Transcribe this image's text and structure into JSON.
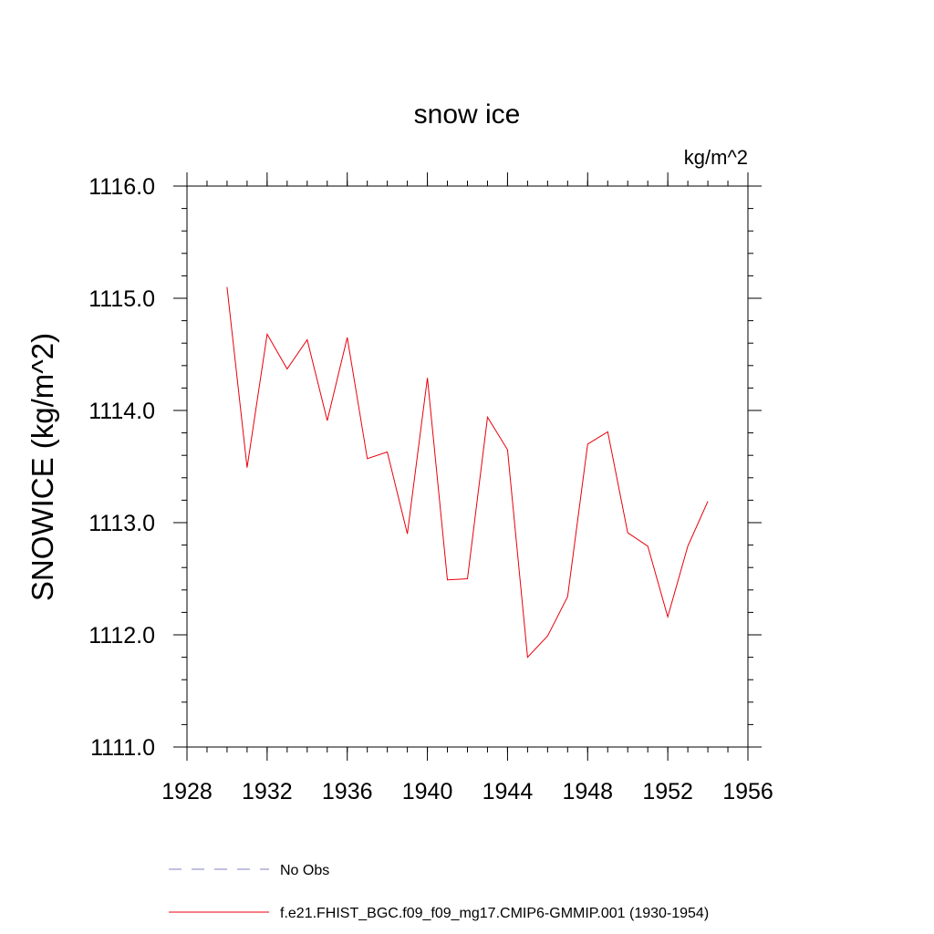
{
  "chart_data": {
    "type": "line",
    "title": "snow ice",
    "units_label": "kg/m^2",
    "ylabel": "SNOWICE  (kg/m^2)",
    "xlabel": "",
    "xlim": [
      1928,
      1956
    ],
    "ylim": [
      1111.0,
      1116.0
    ],
    "x_ticks": [
      1928,
      1932,
      1936,
      1940,
      1944,
      1948,
      1952,
      1956
    ],
    "x_tick_labels": [
      "1928",
      "1932",
      "1936",
      "1940",
      "1944",
      "1948",
      "1952",
      "1956"
    ],
    "y_ticks": [
      1111.0,
      1112.0,
      1113.0,
      1114.0,
      1115.0,
      1116.0
    ],
    "y_tick_labels": [
      "1111.0",
      "1112.0",
      "1113.0",
      "1114.0",
      "1115.0",
      "1116.0"
    ],
    "grid": false,
    "legend_position": "bottom",
    "series": [
      {
        "name": "f.e21.FHIST_BGC.f09_f09_mg17.CMIP6-GMMIP.001 (1930-1954)",
        "color": "#e8000b",
        "style": "solid",
        "x": [
          1930,
          1931,
          1932,
          1933,
          1934,
          1935,
          1936,
          1937,
          1938,
          1939,
          1940,
          1941,
          1942,
          1943,
          1944,
          1945,
          1946,
          1947,
          1948,
          1949,
          1950,
          1951,
          1952,
          1953,
          1954
        ],
        "y": [
          1115.1,
          1113.49,
          1114.68,
          1114.37,
          1114.63,
          1113.91,
          1114.65,
          1113.57,
          1113.63,
          1112.9,
          1114.29,
          1112.49,
          1112.5,
          1113.94,
          1113.65,
          1111.8,
          1111.99,
          1112.34,
          1113.7,
          1113.81,
          1112.91,
          1112.79,
          1112.16,
          1112.79,
          1113.19
        ]
      }
    ],
    "legend": [
      {
        "label": "No Obs",
        "color": "#8080c0",
        "style": "dashed"
      },
      {
        "label": "f.e21.FHIST_BGC.f09_f09_mg17.CMIP6-GMMIP.001 (1930-1954)",
        "color": "#e8000b",
        "style": "solid"
      }
    ]
  }
}
